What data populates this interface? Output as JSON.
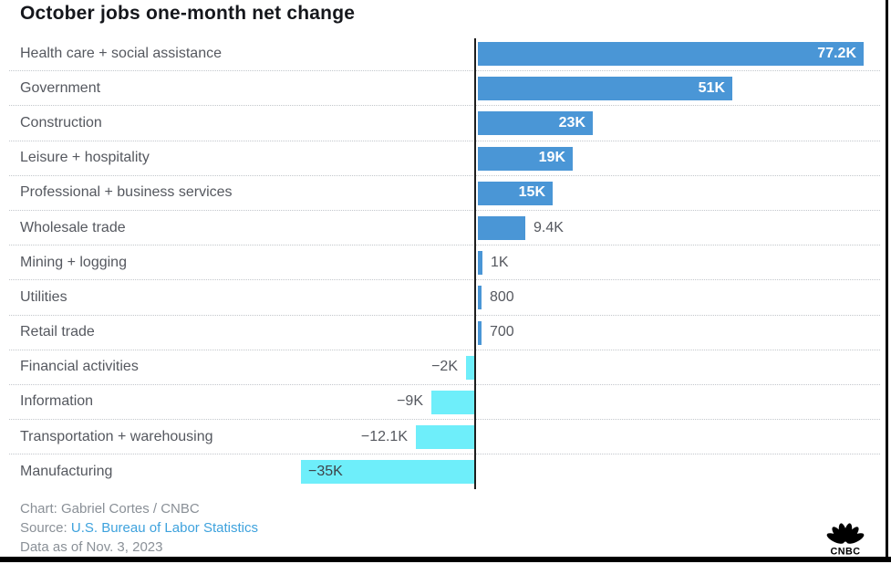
{
  "title": "October jobs one-month net change",
  "chart_data": {
    "type": "bar",
    "orientation": "horizontal",
    "title": "October jobs one-month net change",
    "categories": [
      "Health care + social assistance",
      "Government",
      "Construction",
      "Leisure + hospitality",
      "Professional + business services",
      "Wholesale trade",
      "Mining + logging",
      "Utilities",
      "Retail trade",
      "Financial activities",
      "Information",
      "Transportation + warehousing",
      "Manufacturing"
    ],
    "values": [
      77200,
      51000,
      23000,
      19000,
      15000,
      9400,
      1000,
      800,
      700,
      -2000,
      -9000,
      -12100,
      -35000
    ],
    "value_labels": [
      "77.2K",
      "51K",
      "23K",
      "19K",
      "15K",
      "9.4K",
      "1K",
      "800",
      "700",
      "−2K",
      "−9K",
      "−12.1K",
      "−35K"
    ],
    "label_positions": [
      "inside-right",
      "inside-right",
      "inside-right",
      "inside-right",
      "inside-right",
      "outside-right",
      "outside-right",
      "outside-right",
      "outside-right",
      "outside-left",
      "outside-left",
      "outside-left",
      "inside-left"
    ],
    "positive_color": "#4a96d6",
    "negative_color": "#6eeefa",
    "axis_color": "#1d1d1d",
    "xlim": [
      -40000,
      82000
    ],
    "grid": "dotted-row-separators",
    "legend": "none"
  },
  "footer": {
    "credit": "Chart: Gabriel Cortes / CNBC",
    "source_label": "Source: ",
    "source_link": "U.S. Bureau of Labor Statistics",
    "data_as_of": "Data as of Nov. 3, 2023"
  },
  "logo": {
    "brand": "CNBC",
    "text": "CNBC"
  }
}
